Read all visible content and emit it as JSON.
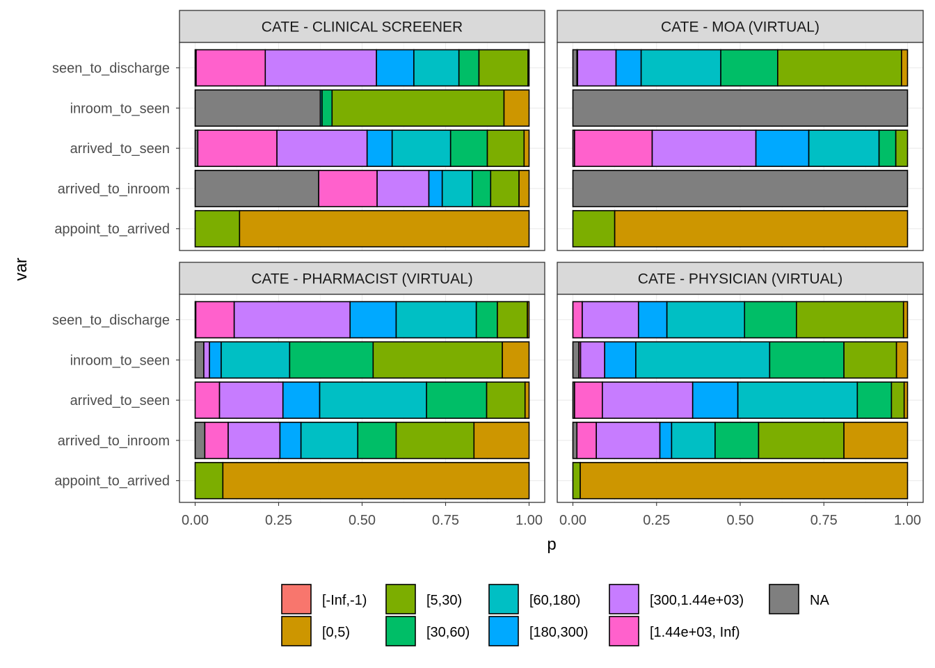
{
  "chart_data": {
    "type": "bar",
    "orientation": "horizontal",
    "stacked": true,
    "xlabel": "p",
    "ylabel": "var",
    "xlim": [
      0,
      1
    ],
    "x_ticks": [
      "0.00",
      "0.25",
      "0.50",
      "0.75",
      "1.00"
    ],
    "x_tick_values": [
      0,
      0.25,
      0.5,
      0.75,
      1
    ],
    "grid": true,
    "legend_position": "bottom",
    "categories": [
      "seen_to_discharge",
      "inroom_to_seen",
      "arrived_to_seen",
      "arrived_to_inroom",
      "appoint_to_arrived"
    ],
    "bins": [
      {
        "label": "[-Inf,-1)",
        "color": "#F8766D"
      },
      {
        "label": "[0,5)",
        "color": "#CD9600"
      },
      {
        "label": "[5,30)",
        "color": "#7CAE00"
      },
      {
        "label": "[30,60)",
        "color": "#00BE67"
      },
      {
        "label": "[60,180)",
        "color": "#00BFC4"
      },
      {
        "label": "[180,300)",
        "color": "#00A9FF"
      },
      {
        "label": "[300,1.44e+03)",
        "color": "#C77CFF"
      },
      {
        "label": "[1.44e+03, Inf)",
        "color": "#FF61CC"
      },
      {
        "label": "NA",
        "color": "#7F7F7F"
      }
    ],
    "facets": [
      {
        "title": "CATE - CLINICAL SCREENER",
        "rows": [
          {
            "var": "seen_to_discharge",
            "values": [
              0,
              0.003,
              0.147,
              0.06,
              0.135,
              0.112,
              0.333,
              0.207,
              0.003
            ]
          },
          {
            "var": "inroom_to_seen",
            "values": [
              0,
              0.075,
              0.515,
              0.03,
              0.005,
              0,
              0,
              0,
              0.375
            ]
          },
          {
            "var": "arrived_to_seen",
            "values": [
              0,
              0.015,
              0.11,
              0.11,
              0.175,
              0.075,
              0.27,
              0.237,
              0.008
            ]
          },
          {
            "var": "arrived_to_inroom",
            "values": [
              0,
              0.03,
              0.085,
              0.055,
              0.09,
              0.04,
              0.155,
              0.175,
              0.37
            ]
          },
          {
            "var": "appoint_to_arrived",
            "values": [
              0,
              0.867,
              0.133,
              0,
              0,
              0,
              0,
              0,
              0
            ]
          }
        ]
      },
      {
        "title": "CATE - MOA (VIRTUAL)",
        "rows": [
          {
            "var": "seen_to_discharge",
            "values": [
              0,
              0.018,
              0.37,
              0.17,
              0.238,
              0.075,
              0.115,
              0.002,
              0.012
            ]
          },
          {
            "var": "inroom_to_seen",
            "values": [
              0,
              0,
              0,
              0,
              0,
              0,
              0,
              0,
              1
            ]
          },
          {
            "var": "arrived_to_seen",
            "values": [
              0,
              0,
              0.035,
              0.05,
              0.21,
              0.158,
              0.31,
              0.232,
              0.005
            ]
          },
          {
            "var": "arrived_to_inroom",
            "values": [
              0,
              0,
              0,
              0,
              0,
              0,
              0,
              0,
              1
            ]
          },
          {
            "var": "appoint_to_arrived",
            "values": [
              0,
              0.875,
              0.125,
              0,
              0,
              0,
              0,
              0,
              0
            ]
          }
        ]
      },
      {
        "title": "CATE - PHARMACIST (VIRTUAL)",
        "rows": [
          {
            "var": "seen_to_discharge",
            "values": [
              0,
              0.005,
              0.09,
              0.063,
              0.24,
              0.138,
              0.347,
              0.115,
              0.002
            ]
          },
          {
            "var": "inroom_to_seen",
            "values": [
              0,
              0.08,
              0.387,
              0.25,
              0.205,
              0.035,
              0.017,
              0,
              0.026
            ]
          },
          {
            "var": "arrived_to_seen",
            "values": [
              0,
              0.012,
              0.115,
              0.18,
              0.32,
              0.11,
              0.19,
              0.073,
              0
            ]
          },
          {
            "var": "arrived_to_inroom",
            "values": [
              0,
              0.165,
              0.233,
              0.115,
              0.17,
              0.063,
              0.155,
              0.07,
              0.029
            ]
          },
          {
            "var": "appoint_to_arrived",
            "values": [
              0,
              0.917,
              0.083,
              0,
              0,
              0,
              0,
              0,
              0
            ]
          }
        ]
      },
      {
        "title": "CATE - PHYSICIAN (VIRTUAL)",
        "rows": [
          {
            "var": "seen_to_discharge",
            "values": [
              0,
              0.012,
              0.32,
              0.155,
              0.232,
              0.085,
              0.168,
              0.028,
              0
            ]
          },
          {
            "var": "inroom_to_seen",
            "values": [
              0,
              0.033,
              0.157,
              0.222,
              0.4,
              0.093,
              0.072,
              0.005,
              0.018
            ]
          },
          {
            "var": "arrived_to_seen",
            "values": [
              0,
              0.01,
              0.038,
              0.102,
              0.357,
              0.135,
              0.27,
              0.083,
              0.005
            ]
          },
          {
            "var": "arrived_to_inroom",
            "values": [
              0,
              0.19,
              0.255,
              0.13,
              0.13,
              0.035,
              0.19,
              0.058,
              0.012
            ]
          },
          {
            "var": "appoint_to_arrived",
            "values": [
              0,
              0.978,
              0.022,
              0,
              0,
              0,
              0,
              0,
              0
            ]
          }
        ]
      }
    ]
  }
}
